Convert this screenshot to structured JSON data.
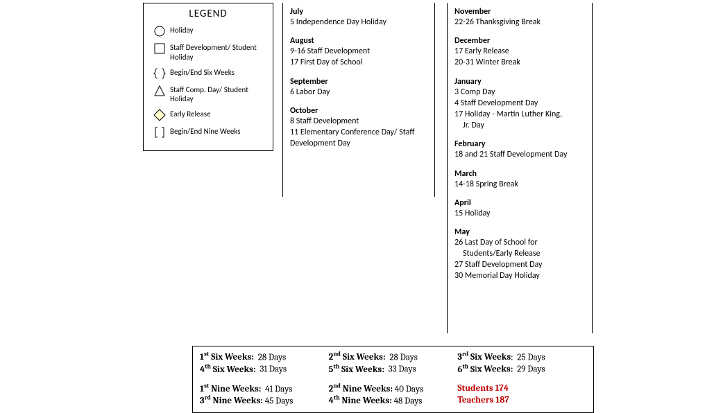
{
  "legend": {
    "title": "LEGEND",
    "items": [
      {
        "label": "Holiday",
        "icon": "circle"
      },
      {
        "label": "Staff Development/ Student Holiday",
        "icon": "square"
      },
      {
        "label": "Begin/End Six Weeks",
        "icon": "curly"
      },
      {
        "label": "Staff Comp. Day/ Student Holiday",
        "icon": "triangle"
      },
      {
        "label": "Early Release",
        "icon": "diamond"
      },
      {
        "label": "Begin/End Nine Weeks",
        "icon": "bracket"
      }
    ]
  },
  "column1": [
    {
      "month": "July",
      "events": [
        "5 Independence Day Holiday"
      ]
    },
    {
      "month": "August",
      "events": [
        "9-16  Staff Development",
        "17 First Day of School"
      ]
    },
    {
      "month": "September",
      "events": [
        "6  Labor Day"
      ]
    },
    {
      "month": "October",
      "events": [
        "8 Staff Development",
        "11 Elementary Conference Day/ Staff Development Day"
      ]
    }
  ],
  "column2": [
    {
      "month": "November",
      "events": [
        "22-26 Thanksgiving Break"
      ]
    },
    {
      "month": "December",
      "events": [
        "17 Early Release",
        "20-31 Winter Break"
      ]
    },
    {
      "month": "January",
      "events": [
        "3 Comp Day",
        "4 Staff Development Day",
        "17 Holiday - Martin Luther King,",
        "     Jr. Day"
      ]
    },
    {
      "month": "February",
      "events": [
        "18 and 21 Staff Development Day"
      ]
    },
    {
      "month": "March",
      "events": [
        "14-18 Spring Break"
      ]
    },
    {
      "month": "April",
      "events": [
        "15 Holiday"
      ]
    },
    {
      "month": "May",
      "events": [
        "26 Last Day of School for",
        "     Students/Early Release",
        "27 Staff Development Day",
        "30 Memorial Day Holiday"
      ]
    }
  ],
  "sixWeeks": [
    {
      "ord": "1",
      "sup": "st",
      "days": "28 Days"
    },
    {
      "ord": "2",
      "sup": "nd",
      "days": "28 Days"
    },
    {
      "ord": "3",
      "sup": "rd",
      "days": "25 Days"
    },
    {
      "ord": "4",
      "sup": "th",
      "days": "31 Days"
    },
    {
      "ord": "5",
      "sup": "th",
      "days": "33 Days"
    },
    {
      "ord": "6",
      "sup": "th",
      "days": "29 Days"
    }
  ],
  "nineWeeks": [
    {
      "ord": "1",
      "sup": "st",
      "days": "41 Days"
    },
    {
      "ord": "2",
      "sup": "nd",
      "days": "40 Days"
    },
    {
      "ord": "3",
      "sup": "rd",
      "days": "45 Days"
    },
    {
      "ord": "4",
      "sup": "th",
      "days": "48 Days"
    }
  ],
  "totals": {
    "studentsLabel": "Students 174",
    "teachersLabel": "Teachers 187"
  },
  "icons": {
    "circle": {
      "stroke": "#000000",
      "fill": "#ffffff"
    },
    "square": {
      "stroke": "#000000",
      "fill": "#ffffff"
    },
    "triangle": {
      "stroke": "#000000",
      "fill": "#ffffff"
    },
    "diamond": {
      "stroke": "#000000",
      "fill": "#ffffcc"
    },
    "curly": {
      "stroke": "#000000"
    },
    "bracket": {
      "stroke": "#000000"
    }
  }
}
